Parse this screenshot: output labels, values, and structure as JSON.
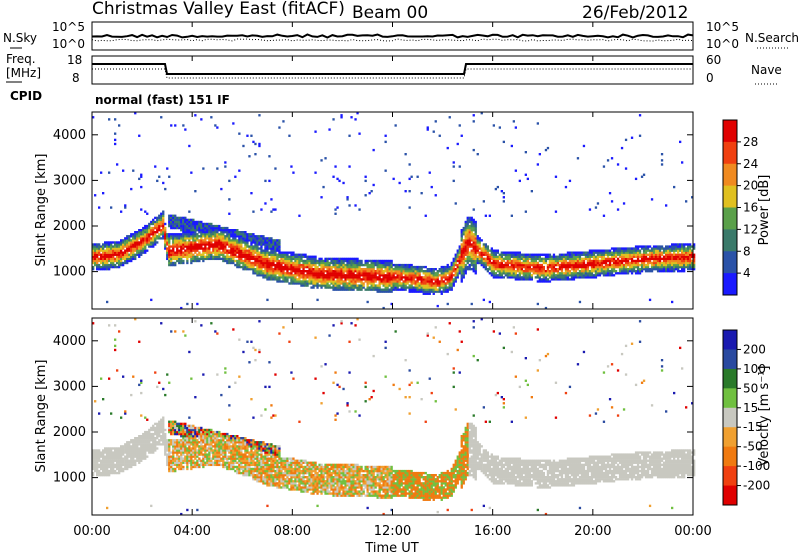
{
  "header": {
    "station": "Christmas Valley East (fitACF)",
    "beam": "Beam 00",
    "date": "26/Feb/2012"
  },
  "noise_panel": {
    "left_label": "N.Sky",
    "right_label": "N.Search",
    "left_ticks": [
      "10^5",
      "10^0"
    ],
    "right_ticks": [
      "10^5",
      "10^0"
    ]
  },
  "freq_panel": {
    "left_label_1": "Freq.",
    "left_label_2": "[MHz]",
    "left_ticks": [
      "18",
      "8"
    ],
    "right_label": "Nave",
    "right_ticks": [
      "60",
      "0"
    ],
    "cpid_label": "CPID",
    "mode_text": "normal (fast) 151 IF"
  },
  "x_axis": {
    "title": "Time UT",
    "ticks": [
      "00:00",
      "04:00",
      "08:00",
      "12:00",
      "16:00",
      "20:00",
      "00:00"
    ]
  },
  "power_panel": {
    "ylabel": "Slant Range [km]",
    "yticks": [
      "1000",
      "2000",
      "3000",
      "4000"
    ],
    "colorbar_label": "Power [dB]",
    "colorbar_ticks": [
      "4",
      "8",
      "12",
      "16",
      "20",
      "24",
      "28"
    ]
  },
  "velocity_panel": {
    "ylabel": "Slant Range [km]",
    "yticks": [
      "1000",
      "2000",
      "3000",
      "4000"
    ],
    "colorbar_label": "Velocity [m s⁻¹]",
    "colorbar_ticks": [
      "200",
      "100",
      "50",
      "15",
      "-15",
      "-50",
      "-100",
      "-200"
    ]
  },
  "chart_data": {
    "type": "heatmap",
    "x_unit": "hours UT",
    "xlim": [
      0,
      24
    ],
    "y_unit": "km",
    "ylim": [
      180,
      4500
    ],
    "power_colors": [
      "#1a1aff",
      "#2a52a8",
      "#3a7a6a",
      "#5aa04a",
      "#e0c020",
      "#f08a20",
      "#f04010",
      "#e00000"
    ],
    "velocity_colors": [
      "#1a1ab0",
      "#2a4aa0",
      "#2a7a2a",
      "#70c040",
      "#c8c8c0",
      "#f0a030",
      "#f07a10",
      "#f04010",
      "#e00000"
    ],
    "gray": "#c8c8c0",
    "main_band": [
      {
        "t": 0.0,
        "r": 1300
      },
      {
        "t": 1.0,
        "r": 1350
      },
      {
        "t": 2.0,
        "r": 1650
      },
      {
        "t": 2.8,
        "r": 2000
      },
      {
        "t": 3.0,
        "r": 1450
      },
      {
        "t": 5.0,
        "r": 1600
      },
      {
        "t": 7.0,
        "r": 1150
      },
      {
        "t": 9.0,
        "r": 950
      },
      {
        "t": 11.0,
        "r": 900
      },
      {
        "t": 12.5,
        "r": 850
      },
      {
        "t": 13.7,
        "r": 750
      },
      {
        "t": 14.3,
        "r": 850
      },
      {
        "t": 15.0,
        "r": 1650
      },
      {
        "t": 16.0,
        "r": 1150
      },
      {
        "t": 18.0,
        "r": 1050
      },
      {
        "t": 20.0,
        "r": 1150
      },
      {
        "t": 22.0,
        "r": 1250
      },
      {
        "t": 24.0,
        "r": 1300
      }
    ]
  }
}
